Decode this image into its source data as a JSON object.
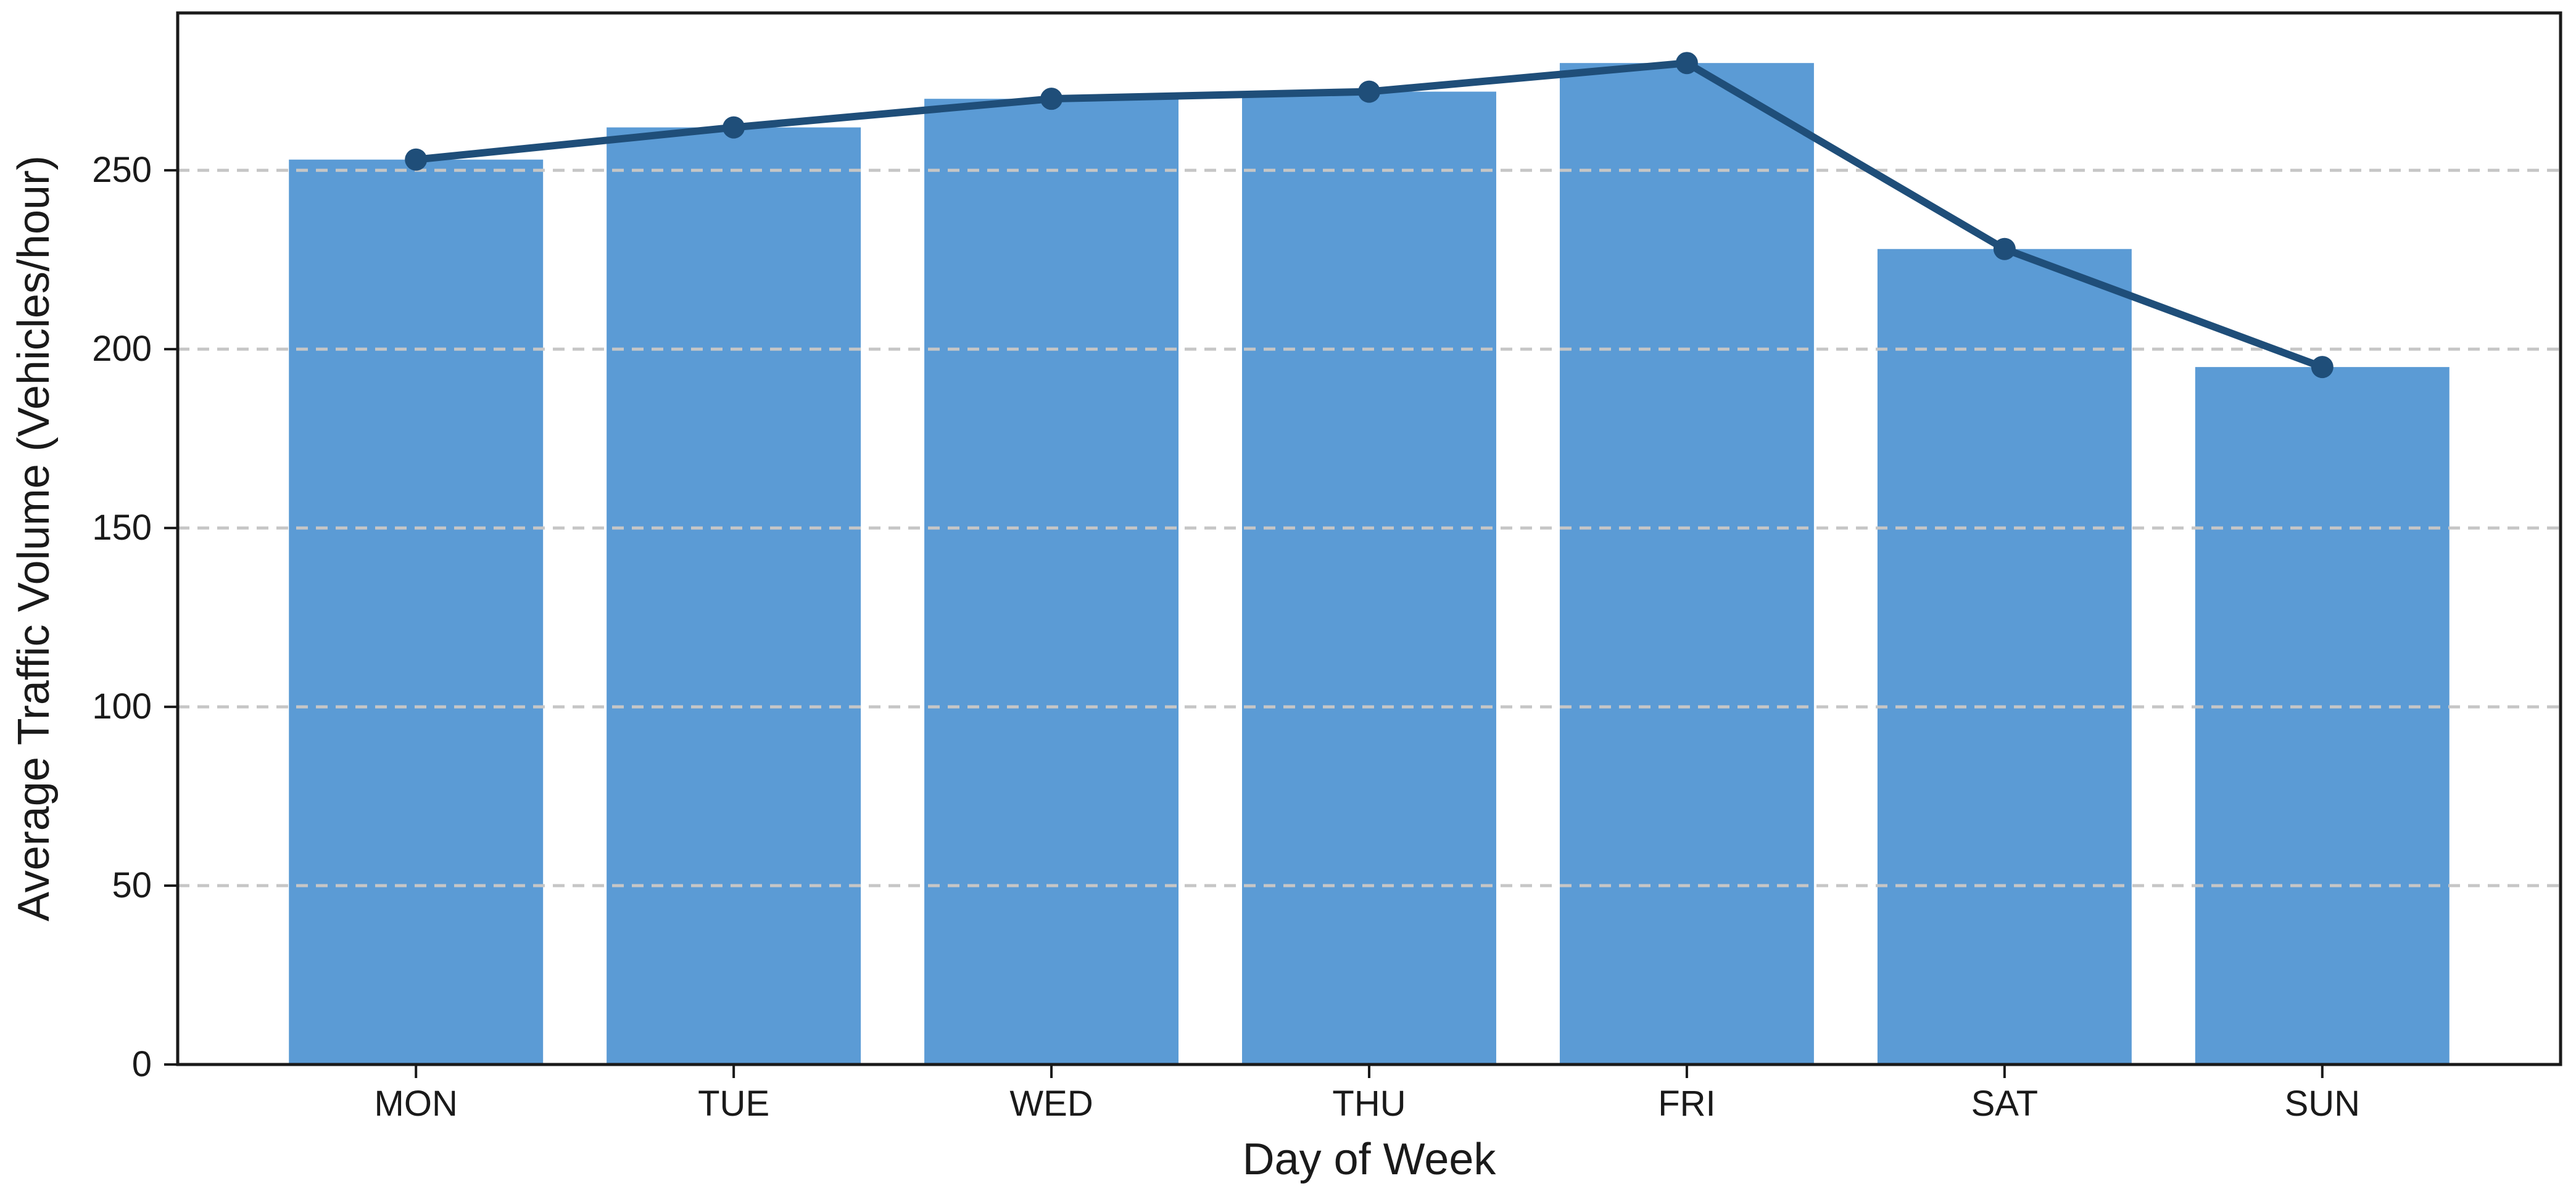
{
  "chart_data": {
    "type": "bar",
    "categories": [
      "MON",
      "TUE",
      "WED",
      "THU",
      "FRI",
      "SAT",
      "SUN"
    ],
    "series": [
      {
        "name": "average-traffic-volume-bars",
        "type": "bar",
        "values": [
          253,
          262,
          270,
          272,
          280,
          228,
          195
        ],
        "color": "#5b9bd5"
      },
      {
        "name": "average-traffic-volume-trend-line",
        "type": "line",
        "values": [
          253,
          262,
          270,
          272,
          280,
          228,
          195
        ],
        "color": "#1f4e79",
        "marker": "circle"
      }
    ],
    "title": "",
    "xlabel": "Day of Week",
    "ylabel": "Average Traffic Volume (Vehicles/hour)",
    "ylim": [
      0,
      294
    ],
    "yticks": [
      0,
      50,
      100,
      150,
      200,
      250
    ],
    "grid": {
      "axis": "y",
      "style": "dashed",
      "color": "#c6c6c6"
    },
    "legend": "none",
    "colors": {
      "background": "#ffffff",
      "axis": "#1a1a1a",
      "tick_label": "#1a1a1a",
      "bar": "#5b9bd5",
      "line": "#1f4e79"
    },
    "bar_width_fraction": 0.8
  }
}
